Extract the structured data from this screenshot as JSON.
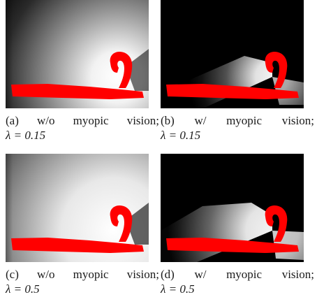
{
  "figure": {
    "panels": [
      {
        "label": "(a)",
        "words": [
          "w/o",
          "myopic",
          "vision;"
        ],
        "lambda_text": "λ = 0.15",
        "lambda": 0.15,
        "myopic": false
      },
      {
        "label": "(b)",
        "words": [
          "w/",
          "myopic",
          "vision;"
        ],
        "lambda_text": "λ = 0.15",
        "lambda": 0.15,
        "myopic": true
      },
      {
        "label": "(c)",
        "words": [
          "w/o",
          "myopic",
          "vision;"
        ],
        "lambda_text": "λ = 0.5",
        "lambda": 0.5,
        "myopic": false
      },
      {
        "label": "(d)",
        "words": [
          "w/",
          "myopic",
          "vision;"
        ],
        "lambda_text": "λ = 0.5",
        "lambda": 0.5,
        "myopic": true
      }
    ],
    "colors": {
      "background": "#000000",
      "highlight": "#ffffff",
      "obstacle": "#ff0000"
    }
  }
}
